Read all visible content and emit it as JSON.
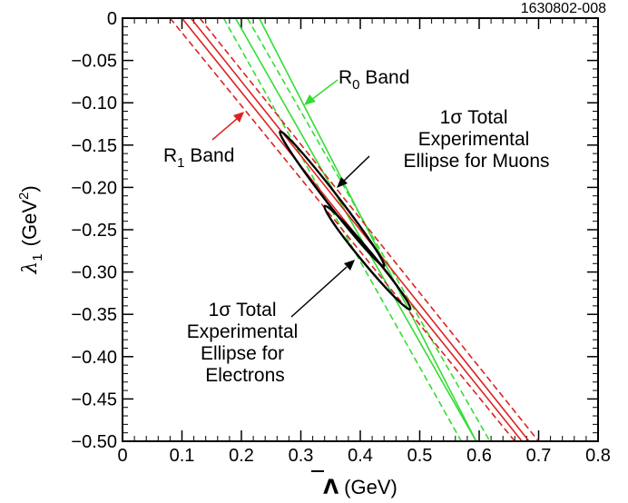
{
  "figure_id": "1630802-008",
  "chart_data": {
    "type": "line",
    "title": "",
    "xlabel": {
      "symbol": "Λ",
      "unit": "(GeV)"
    },
    "ylabel": {
      "symbol": "λ",
      "sub": "1",
      "unit_open": "(GeV",
      "unit_sup": "2",
      "unit_close": ")"
    },
    "xlim": [
      0,
      0.8
    ],
    "ylim": [
      -0.5,
      0
    ],
    "xticks": [
      0,
      0.1,
      0.2,
      0.3,
      0.4,
      0.5,
      0.6,
      0.7,
      0.8
    ],
    "xtick_labels": [
      "0",
      "0.1",
      "0.2",
      "0.3",
      "0.4",
      "0.5",
      "0.6",
      "0.7",
      "0.8"
    ],
    "yticks": [
      0,
      -0.05,
      -0.1,
      -0.15,
      -0.2,
      -0.25,
      -0.3,
      -0.35,
      -0.4,
      -0.45,
      -0.5
    ],
    "ytick_labels": [
      "0",
      "−0.05",
      "−0.10",
      "−0.15",
      "−0.20",
      "−0.25",
      "−0.30",
      "−0.35",
      "−0.40",
      "−0.45",
      "−0.50"
    ],
    "series": [
      {
        "name": "R0 band outer left",
        "color": "#33dd33",
        "style": "dashed",
        "points": [
          [
            0.17,
            0
          ],
          [
            0.57,
            -0.5
          ]
        ]
      },
      {
        "name": "R0 band center left",
        "color": "#33dd33",
        "style": "solid",
        "points": [
          [
            0.19,
            0
          ],
          [
            0.595,
            -0.5
          ]
        ]
      },
      {
        "name": "R0 band center right",
        "color": "#33dd33",
        "style": "solid",
        "points": [
          [
            0.23,
            0
          ],
          [
            0.595,
            -0.5
          ]
        ]
      },
      {
        "name": "R0 band outer right",
        "color": "#33dd33",
        "style": "dashed",
        "points": [
          [
            0.21,
            0
          ],
          [
            0.618,
            -0.5
          ]
        ]
      },
      {
        "name": "R1 band outer left",
        "color": "#dd2222",
        "style": "dashed",
        "points": [
          [
            0.08,
            0
          ],
          [
            0.66,
            -0.5
          ]
        ]
      },
      {
        "name": "R1 band center left",
        "color": "#dd2222",
        "style": "solid",
        "points": [
          [
            0.1,
            0
          ],
          [
            0.672,
            -0.5
          ]
        ]
      },
      {
        "name": "R1 band center right",
        "color": "#dd2222",
        "style": "solid",
        "points": [
          [
            0.115,
            0
          ],
          [
            0.684,
            -0.5
          ]
        ]
      },
      {
        "name": "R1 band outer right",
        "color": "#dd2222",
        "style": "dashed",
        "points": [
          [
            0.13,
            0
          ],
          [
            0.7,
            -0.5
          ]
        ]
      }
    ],
    "ellipses": [
      {
        "name": "1σ total experimental ellipse for muons",
        "color": "#000000",
        "ends": [
          [
            0.265,
            -0.134
          ],
          [
            0.44,
            -0.293
          ]
        ],
        "half_width": 0.01
      },
      {
        "name": "1σ total experimental ellipse for electrons",
        "color": "#000000",
        "ends": [
          [
            0.34,
            -0.222
          ],
          [
            0.484,
            -0.344
          ]
        ],
        "half_width": 0.01
      }
    ],
    "annotations": {
      "r0_band": {
        "text": "R",
        "sub": "0",
        "rest": " Band",
        "color": "#33dd33"
      },
      "r1_band": {
        "text": "R",
        "sub": "1",
        "rest": " Band",
        "color": "#dd2222"
      },
      "muons": {
        "line1": "1σ Total",
        "line2": "Experimental",
        "line3": "Ellipse for Muons"
      },
      "electrons": {
        "line1": "1σ Total",
        "line2": "Experimental",
        "line3": "Ellipse for",
        "line4": "Electrons"
      }
    }
  }
}
